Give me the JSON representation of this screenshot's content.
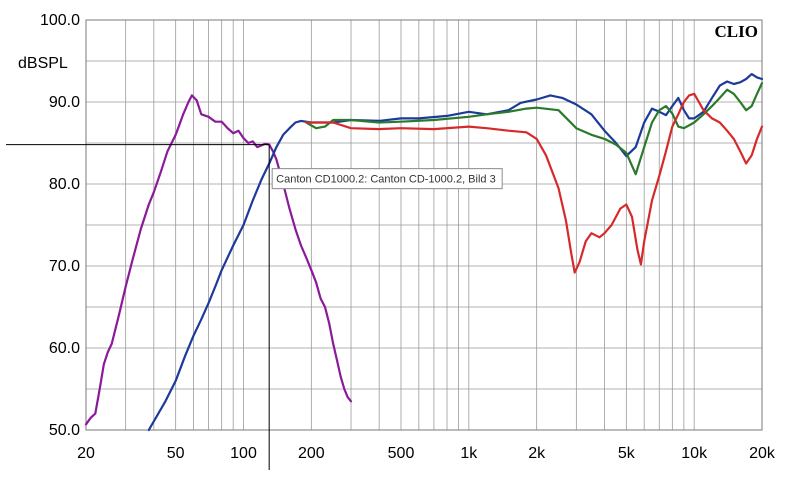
{
  "chart_data": {
    "type": "line",
    "brand": "CLIO",
    "ylabel": "dBSPL",
    "xscale": "log",
    "xlim": [
      20,
      20000
    ],
    "ylim": [
      50,
      100
    ],
    "grid": true,
    "xticks": [
      {
        "v": 20,
        "label": "20"
      },
      {
        "v": 50,
        "label": "50"
      },
      {
        "v": 100,
        "label": "100"
      },
      {
        "v": 200,
        "label": "200"
      },
      {
        "v": 500,
        "label": "500"
      },
      {
        "v": 1000,
        "label": "1k"
      },
      {
        "v": 2000,
        "label": "2k"
      },
      {
        "v": 5000,
        "label": "5k"
      },
      {
        "v": 10000,
        "label": "10k"
      },
      {
        "v": 20000,
        "label": "20k"
      }
    ],
    "yticks": [
      {
        "v": 50,
        "label": "50.0"
      },
      {
        "v": 60,
        "label": "60.0"
      },
      {
        "v": 70,
        "label": "70.0"
      },
      {
        "v": 80,
        "label": "80.0"
      },
      {
        "v": 90,
        "label": "90.0"
      },
      {
        "v": 100,
        "label": "100.0"
      }
    ],
    "cursor": {
      "x": 130,
      "y": 84.8,
      "tooltip": "Canton CD1000.2: Canton CD-1000.2, Bild 3"
    },
    "series": [
      {
        "color": "#8a1a9a",
        "points": [
          [
            20,
            50.7
          ],
          [
            21,
            51.5
          ],
          [
            22,
            52.0
          ],
          [
            23,
            55.0
          ],
          [
            24,
            58.0
          ],
          [
            25,
            59.5
          ],
          [
            26,
            60.5
          ],
          [
            28,
            64.0
          ],
          [
            30,
            67.5
          ],
          [
            32,
            70.5
          ],
          [
            35,
            74.5
          ],
          [
            38,
            77.5
          ],
          [
            40,
            79.0
          ],
          [
            43,
            81.5
          ],
          [
            46,
            84.0
          ],
          [
            50,
            86.0
          ],
          [
            54,
            88.5
          ],
          [
            57,
            90.0
          ],
          [
            59,
            90.8
          ],
          [
            62,
            90.2
          ],
          [
            65,
            88.5
          ],
          [
            70,
            88.2
          ],
          [
            75,
            87.6
          ],
          [
            80,
            87.6
          ],
          [
            85,
            86.8
          ],
          [
            90,
            86.2
          ],
          [
            95,
            86.5
          ],
          [
            100,
            85.6
          ],
          [
            105,
            85.0
          ],
          [
            110,
            85.2
          ],
          [
            115,
            84.5
          ],
          [
            120,
            84.7
          ],
          [
            125,
            84.9
          ],
          [
            130,
            84.8
          ],
          [
            135,
            84.0
          ],
          [
            140,
            83.0
          ],
          [
            150,
            80.0
          ],
          [
            160,
            77.0
          ],
          [
            170,
            74.5
          ],
          [
            180,
            72.5
          ],
          [
            190,
            71.0
          ],
          [
            200,
            69.5
          ],
          [
            210,
            68.0
          ],
          [
            220,
            66.0
          ],
          [
            230,
            65.0
          ],
          [
            240,
            63.0
          ],
          [
            250,
            60.5
          ],
          [
            260,
            58.5
          ],
          [
            270,
            56.5
          ],
          [
            280,
            55.0
          ],
          [
            290,
            54.0
          ],
          [
            300,
            53.5
          ]
        ]
      },
      {
        "color": "#1c3a9a",
        "points": [
          [
            38,
            50.0
          ],
          [
            45,
            53.5
          ],
          [
            50,
            56.0
          ],
          [
            55,
            59.0
          ],
          [
            60,
            61.5
          ],
          [
            65,
            63.5
          ],
          [
            70,
            65.5
          ],
          [
            75,
            67.5
          ],
          [
            80,
            69.5
          ],
          [
            90,
            72.5
          ],
          [
            100,
            75.0
          ],
          [
            110,
            78.0
          ],
          [
            120,
            80.5
          ],
          [
            130,
            82.5
          ],
          [
            140,
            84.5
          ],
          [
            150,
            86.0
          ],
          [
            160,
            86.8
          ],
          [
            170,
            87.5
          ],
          [
            180,
            87.7
          ],
          [
            200,
            87.5
          ],
          [
            250,
            87.5
          ],
          [
            300,
            87.8
          ],
          [
            400,
            87.7
          ],
          [
            500,
            88.0
          ],
          [
            600,
            88.0
          ],
          [
            800,
            88.3
          ],
          [
            1000,
            88.8
          ],
          [
            1200,
            88.5
          ],
          [
            1500,
            89.0
          ],
          [
            1700,
            89.9
          ],
          [
            2000,
            90.3
          ],
          [
            2300,
            90.8
          ],
          [
            2600,
            90.5
          ],
          [
            3000,
            89.7
          ],
          [
            3500,
            88.5
          ],
          [
            4000,
            86.5
          ],
          [
            4500,
            85.0
          ],
          [
            5000,
            83.4
          ],
          [
            5500,
            84.5
          ],
          [
            6000,
            87.5
          ],
          [
            6500,
            89.2
          ],
          [
            7000,
            88.8
          ],
          [
            7500,
            88.4
          ],
          [
            8000,
            89.5
          ],
          [
            8500,
            90.5
          ],
          [
            9000,
            89.0
          ],
          [
            9500,
            88.0
          ],
          [
            10000,
            88.0
          ],
          [
            11000,
            88.8
          ],
          [
            12000,
            90.5
          ],
          [
            13000,
            92.0
          ],
          [
            14000,
            92.5
          ],
          [
            15000,
            92.2
          ],
          [
            16000,
            92.4
          ],
          [
            17000,
            92.8
          ],
          [
            18000,
            93.4
          ],
          [
            19000,
            93.0
          ],
          [
            20000,
            92.8
          ]
        ]
      },
      {
        "color": "#2b7a2b",
        "points": [
          [
            190,
            87.5
          ],
          [
            210,
            86.8
          ],
          [
            230,
            87.0
          ],
          [
            250,
            87.8
          ],
          [
            300,
            87.8
          ],
          [
            400,
            87.5
          ],
          [
            500,
            87.6
          ],
          [
            700,
            87.8
          ],
          [
            1000,
            88.2
          ],
          [
            1200,
            88.5
          ],
          [
            1500,
            88.8
          ],
          [
            1800,
            89.2
          ],
          [
            2000,
            89.3
          ],
          [
            2500,
            89.0
          ],
          [
            3000,
            86.8
          ],
          [
            3500,
            86.0
          ],
          [
            4000,
            85.5
          ],
          [
            4500,
            84.8
          ],
          [
            5000,
            83.8
          ],
          [
            5500,
            81.2
          ],
          [
            6000,
            84.5
          ],
          [
            6500,
            87.5
          ],
          [
            7000,
            89.0
          ],
          [
            7500,
            89.5
          ],
          [
            8000,
            88.6
          ],
          [
            8500,
            87.0
          ],
          [
            9000,
            86.8
          ],
          [
            10000,
            87.5
          ],
          [
            11000,
            88.5
          ],
          [
            12000,
            89.5
          ],
          [
            13000,
            90.5
          ],
          [
            14000,
            91.5
          ],
          [
            15000,
            91.0
          ],
          [
            16000,
            90.0
          ],
          [
            17000,
            89.0
          ],
          [
            18000,
            89.5
          ],
          [
            19000,
            91.0
          ],
          [
            20000,
            92.3
          ]
        ]
      },
      {
        "color": "#d62a2a",
        "points": [
          [
            190,
            87.5
          ],
          [
            250,
            87.5
          ],
          [
            300,
            86.8
          ],
          [
            400,
            86.7
          ],
          [
            500,
            86.8
          ],
          [
            700,
            86.7
          ],
          [
            1000,
            87.0
          ],
          [
            1200,
            86.8
          ],
          [
            1500,
            86.5
          ],
          [
            1800,
            86.3
          ],
          [
            2000,
            85.5
          ],
          [
            2200,
            83.5
          ],
          [
            2500,
            79.5
          ],
          [
            2700,
            75.5
          ],
          [
            2850,
            71.5
          ],
          [
            2950,
            69.2
          ],
          [
            3100,
            70.5
          ],
          [
            3300,
            73.0
          ],
          [
            3500,
            74.0
          ],
          [
            3800,
            73.5
          ],
          [
            4000,
            74.0
          ],
          [
            4300,
            75.0
          ],
          [
            4700,
            77.0
          ],
          [
            5000,
            77.5
          ],
          [
            5300,
            76.0
          ],
          [
            5600,
            72.0
          ],
          [
            5800,
            70.2
          ],
          [
            6000,
            73.0
          ],
          [
            6500,
            78.0
          ],
          [
            7000,
            81.0
          ],
          [
            7500,
            84.0
          ],
          [
            8000,
            87.0
          ],
          [
            8500,
            88.5
          ],
          [
            9000,
            90.0
          ],
          [
            9500,
            90.8
          ],
          [
            10000,
            91.0
          ],
          [
            10500,
            90.0
          ],
          [
            11000,
            89.0
          ],
          [
            12000,
            88.0
          ],
          [
            13000,
            87.5
          ],
          [
            14000,
            86.5
          ],
          [
            15000,
            85.5
          ],
          [
            16000,
            84.0
          ],
          [
            17000,
            82.5
          ],
          [
            18000,
            83.5
          ],
          [
            19000,
            85.5
          ],
          [
            20000,
            87.0
          ]
        ]
      }
    ]
  }
}
